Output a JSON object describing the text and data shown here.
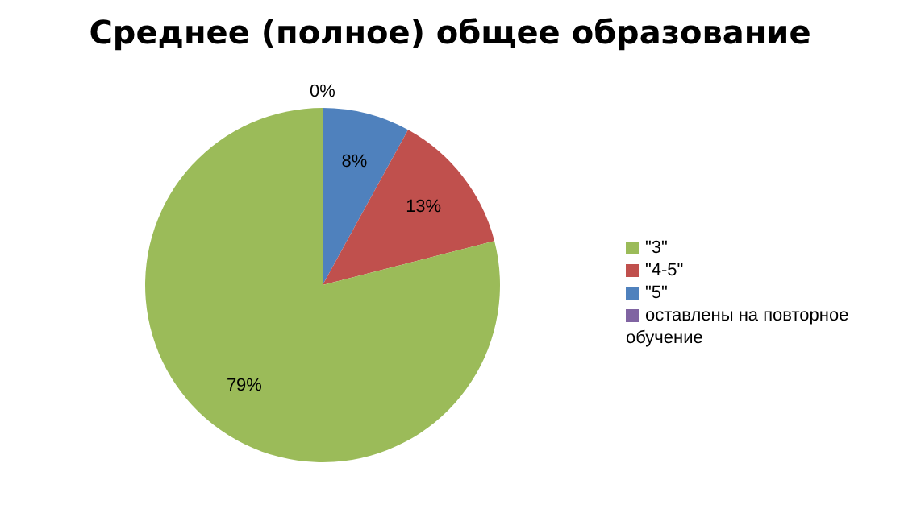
{
  "chart_data": {
    "type": "pie",
    "title": "Среднее (полное) общее образование",
    "categories": [
      "\"5\"",
      "\"4-5\"",
      "\"3\"",
      "оставлены на повторное обучение"
    ],
    "values": [
      8,
      13,
      79,
      0
    ],
    "value_labels": [
      "8%",
      "13%",
      "79%",
      "0%"
    ],
    "colors": [
      "#4f81bd",
      "#c0504d",
      "#9bbb59",
      "#8064a2"
    ],
    "legend": "right"
  }
}
